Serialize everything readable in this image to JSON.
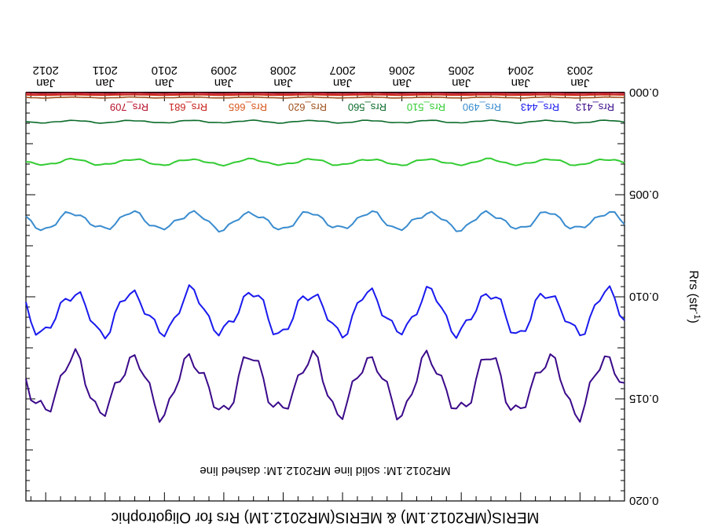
{
  "chart_data": {
    "type": "line",
    "orientation": "rotated-180",
    "title": "MERIS(MR2012.1M) & MERIS(MR2012.1M)  Rrs for Oligotrophic",
    "note": "MR2012.1M: solid line   MR2012.1M: dashed line",
    "ylabel": "Rrs (str",
    "ylabel_superscript": "-1",
    "ylabel_suffix": ")",
    "ylim": [
      0.0,
      0.02
    ],
    "yticks": [
      "0.000",
      "0.005",
      "0.010",
      "0.015",
      "0.020"
    ],
    "xlim": [
      "2002-04",
      "2012-05"
    ],
    "xticks": [
      {
        "month": "Jan",
        "year": "2003",
        "date": "2003-01"
      },
      {
        "month": "Jan",
        "year": "2004",
        "date": "2004-01"
      },
      {
        "month": "Jan",
        "year": "2005",
        "date": "2005-01"
      },
      {
        "month": "Jan",
        "year": "2006",
        "date": "2006-01"
      },
      {
        "month": "Jan",
        "year": "2007",
        "date": "2007-01"
      },
      {
        "month": "Jan",
        "year": "2008",
        "date": "2008-01"
      },
      {
        "month": "Jan",
        "year": "2009",
        "date": "2009-01"
      },
      {
        "month": "Jan",
        "year": "2010",
        "date": "2010-01"
      },
      {
        "month": "Jan",
        "year": "2011",
        "date": "2011-01"
      },
      {
        "month": "Jan",
        "year": "2012",
        "date": "2012-01"
      }
    ],
    "grid": false,
    "legend_position": "top",
    "series": [
      {
        "name": "Rrs_413",
        "color": "#3b0a8a",
        "mean": 0.01432,
        "amplitude": 0.00135,
        "start": "2002-04",
        "end": "2012-05"
      },
      {
        "name": "Rrs_443",
        "color": "#1a1aee",
        "mean": 0.01078,
        "amplitude": 0.001,
        "start": "2002-04",
        "end": "2012-05"
      },
      {
        "name": "Rrs_490",
        "color": "#3a8ccf",
        "mean": 0.00628,
        "amplitude": 0.0004,
        "start": "2002-04",
        "end": "2012-05"
      },
      {
        "name": "Rrs_510",
        "color": "#33cc33",
        "mean": 0.0034,
        "amplitude": 0.00014,
        "start": "2002-04",
        "end": "2012-05"
      },
      {
        "name": "Rrs_560",
        "color": "#0b6b2a",
        "mean": 0.00142,
        "amplitude": 6e-05,
        "start": "2002-04",
        "end": "2012-05"
      },
      {
        "name": "Rrs_620",
        "color": "#a0501c",
        "mean": 0.00024,
        "amplitude": 2e-05,
        "start": "2002-04",
        "end": "2012-05"
      },
      {
        "name": "Rrs_665",
        "color": "#d9551c",
        "mean": 0.00012,
        "amplitude": 1e-05,
        "start": "2002-04",
        "end": "2012-05"
      },
      {
        "name": "Rrs_681",
        "color": "#c8201c",
        "mean": 0.0001,
        "amplitude": 1e-05,
        "start": "2002-04",
        "end": "2012-05"
      },
      {
        "name": "Rrs_709",
        "color": "#b8102a",
        "mean": 3e-05,
        "amplitude": 1e-05,
        "start": "2002-04",
        "end": "2012-05"
      }
    ],
    "reference_line": {
      "value": 0.0,
      "color": "#000000"
    }
  }
}
